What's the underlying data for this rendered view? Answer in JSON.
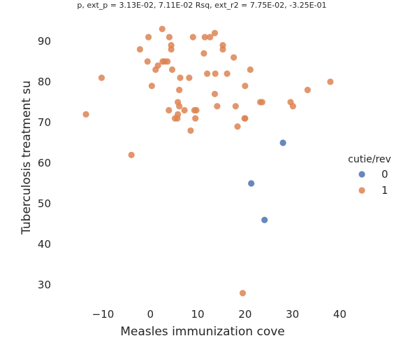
{
  "chart_data": {
    "type": "scatter",
    "title": "p, ext_p = 3.13E-02, 7.11E-02 Rsq, ext_r2 = 7.75E-02, -3.25E-01",
    "xlabel": "Measles immunization cove",
    "ylabel": "Tuberculosis treatment su",
    "xlim": [
      -17,
      42
    ],
    "ylim": [
      24,
      96
    ],
    "xticks": [
      -10,
      0,
      10,
      20,
      30,
      40
    ],
    "yticks": [
      30,
      40,
      50,
      60,
      70,
      80,
      90
    ],
    "grid": false,
    "legend": {
      "title": "cutie/rev",
      "placement": "right"
    },
    "series": [
      {
        "name": "0",
        "color": "#4c72b0",
        "points": [
          [
            28.0,
            65
          ],
          [
            21.3,
            55
          ],
          [
            24.1,
            46
          ]
        ]
      },
      {
        "name": "1",
        "color": "#dd8452",
        "points": [
          [
            -13.6,
            72
          ],
          [
            -10.3,
            81
          ],
          [
            -4.0,
            62
          ],
          [
            -2.2,
            88
          ],
          [
            -0.6,
            85
          ],
          [
            -0.4,
            91
          ],
          [
            0.3,
            79
          ],
          [
            1.1,
            83
          ],
          [
            1.6,
            84
          ],
          [
            2.5,
            93
          ],
          [
            2.6,
            85
          ],
          [
            3.0,
            85
          ],
          [
            3.6,
            85
          ],
          [
            3.9,
            73
          ],
          [
            4.0,
            91
          ],
          [
            4.4,
            88
          ],
          [
            4.4,
            89
          ],
          [
            4.6,
            83
          ],
          [
            5.2,
            71
          ],
          [
            5.7,
            71
          ],
          [
            5.8,
            72
          ],
          [
            5.8,
            75
          ],
          [
            6.1,
            74
          ],
          [
            6.1,
            78
          ],
          [
            6.3,
            81
          ],
          [
            7.2,
            73
          ],
          [
            8.2,
            81
          ],
          [
            8.5,
            68
          ],
          [
            9.0,
            91
          ],
          [
            9.3,
            73
          ],
          [
            9.5,
            71
          ],
          [
            9.7,
            73
          ],
          [
            11.3,
            87
          ],
          [
            11.5,
            91
          ],
          [
            12.0,
            82
          ],
          [
            12.6,
            91
          ],
          [
            13.6,
            92
          ],
          [
            13.6,
            77
          ],
          [
            13.7,
            82
          ],
          [
            14.1,
            74
          ],
          [
            15.3,
            89
          ],
          [
            15.3,
            88
          ],
          [
            16.2,
            82
          ],
          [
            17.6,
            86
          ],
          [
            18.0,
            74
          ],
          [
            18.4,
            69
          ],
          [
            19.5,
            28
          ],
          [
            19.9,
            71
          ],
          [
            20.0,
            71
          ],
          [
            20.0,
            79
          ],
          [
            21.1,
            83
          ],
          [
            23.2,
            75
          ],
          [
            23.6,
            75
          ],
          [
            29.6,
            75
          ],
          [
            30.1,
            74
          ],
          [
            33.2,
            78
          ],
          [
            38.0,
            80
          ]
        ]
      }
    ]
  }
}
